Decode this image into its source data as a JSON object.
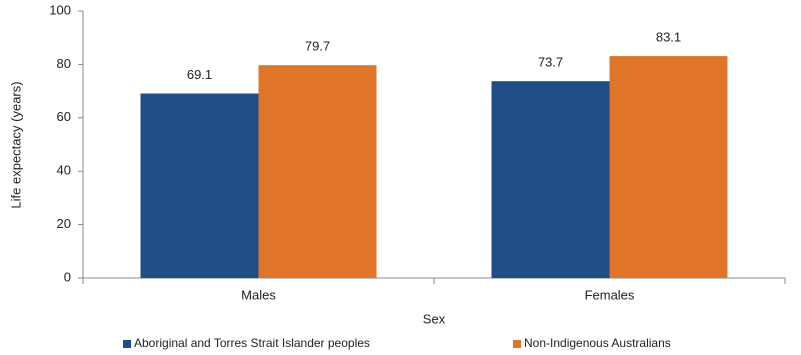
{
  "chart_data": {
    "type": "bar",
    "x_label": "Sex",
    "y_label": "Life expectacy (years)",
    "categories": [
      "Males",
      "Females"
    ],
    "series": [
      {
        "name": "Aboriginal and Torres Strait Islander peoples",
        "color": "#1f4e87",
        "values": [
          69.1,
          73.7
        ]
      },
      {
        "name": "Non-Indigenous Australians",
        "color": "#e07428",
        "values": [
          79.7,
          83.1
        ]
      }
    ],
    "ylim": [
      0,
      100
    ],
    "yticks": [
      0,
      20,
      40,
      60,
      80,
      100
    ],
    "grid": false,
    "legend": "bottom"
  }
}
